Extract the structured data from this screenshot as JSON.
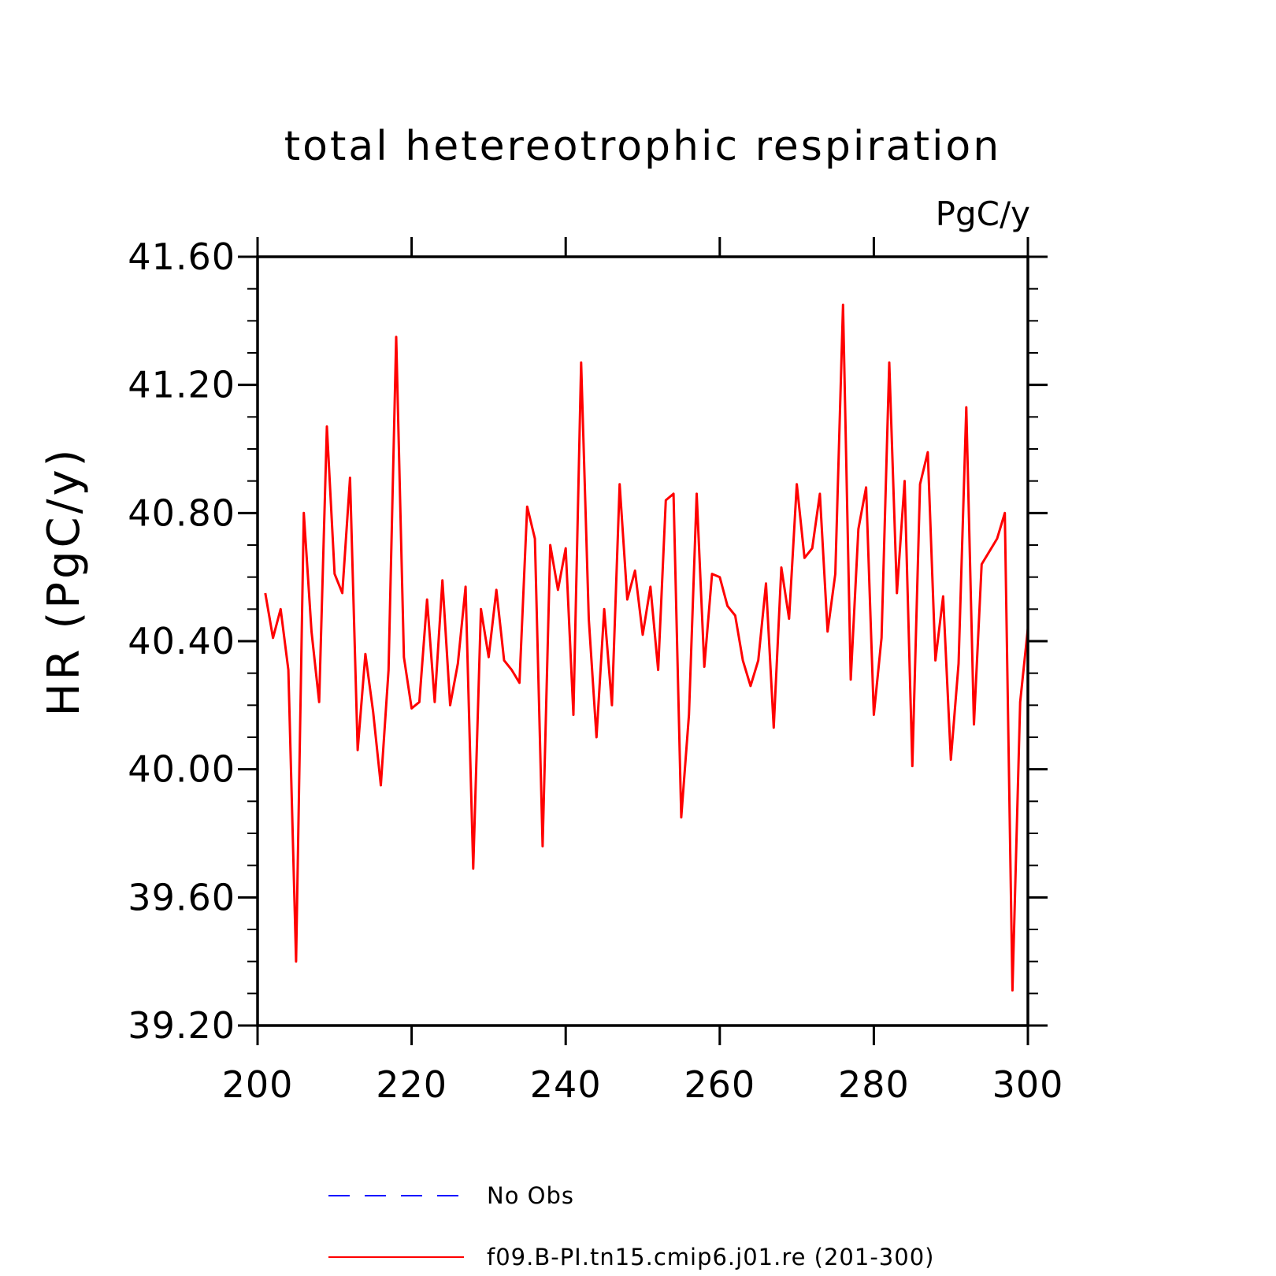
{
  "chart_data": {
    "type": "line",
    "title": "total hetereotrophic respiration",
    "units": "PgC/y",
    "ylabel": "HR  (PgC/y)",
    "xlabel": "",
    "xlim": [
      200,
      300
    ],
    "ylim": [
      39.2,
      41.6
    ],
    "xticks": [
      200,
      220,
      240,
      260,
      280,
      300
    ],
    "xtick_labels": [
      "200",
      "220",
      "240",
      "260",
      "280",
      "300"
    ],
    "yticks": [
      39.2,
      39.6,
      40.0,
      40.4,
      40.8,
      41.2,
      41.6
    ],
    "ytick_labels": [
      "39.20",
      "39.60",
      "40.00",
      "40.40",
      "40.80",
      "41.20",
      "41.60"
    ],
    "grid": false,
    "legend": {
      "placement": "bottom",
      "entries": [
        {
          "label": "No Obs",
          "color": "#0000ff",
          "style": "dashed"
        },
        {
          "label": "f09.B-PI.tn15.cmip6.j01.re (201-300)",
          "color": "#ff0000",
          "style": "solid"
        }
      ]
    },
    "x": [
      201,
      202,
      203,
      204,
      205,
      206,
      207,
      208,
      209,
      210,
      211,
      212,
      213,
      214,
      215,
      216,
      217,
      218,
      219,
      220,
      221,
      222,
      223,
      224,
      225,
      226,
      227,
      228,
      229,
      230,
      231,
      232,
      233,
      234,
      235,
      236,
      237,
      238,
      239,
      240,
      241,
      242,
      243,
      244,
      245,
      246,
      247,
      248,
      249,
      250,
      251,
      252,
      253,
      254,
      255,
      256,
      257,
      258,
      259,
      260,
      261,
      262,
      263,
      264,
      265,
      266,
      267,
      268,
      269,
      270,
      271,
      272,
      273,
      274,
      275,
      276,
      277,
      278,
      279,
      280,
      281,
      282,
      283,
      284,
      285,
      286,
      287,
      288,
      289,
      290,
      291,
      292,
      293,
      294,
      295,
      296,
      297,
      298,
      299,
      300
    ],
    "series": [
      {
        "name": "f09.B-PI.tn15.cmip6.j01.re (201-300)",
        "color": "#ff0000",
        "values": [
          40.55,
          40.41,
          40.5,
          40.31,
          39.4,
          40.8,
          40.43,
          40.21,
          41.07,
          40.61,
          40.55,
          40.91,
          40.06,
          40.36,
          40.18,
          39.95,
          40.31,
          41.35,
          40.35,
          40.19,
          40.21,
          40.53,
          40.21,
          40.59,
          40.2,
          40.33,
          40.57,
          39.69,
          40.5,
          40.35,
          40.56,
          40.34,
          40.31,
          40.27,
          40.82,
          40.72,
          39.76,
          40.7,
          40.56,
          40.69,
          40.17,
          41.27,
          40.47,
          40.1,
          40.5,
          40.2,
          40.89,
          40.53,
          40.62,
          40.42,
          40.57,
          40.31,
          40.84,
          40.86,
          39.85,
          40.17,
          40.86,
          40.32,
          40.61,
          40.6,
          40.51,
          40.48,
          40.34,
          40.26,
          40.34,
          40.58,
          40.13,
          40.63,
          40.47,
          40.89,
          40.66,
          40.69,
          40.86,
          40.43,
          40.61,
          41.45,
          40.28,
          40.75,
          40.88,
          40.17,
          40.41,
          41.27,
          40.55,
          40.9,
          40.01,
          40.89,
          40.99,
          40.34,
          40.54,
          40.03,
          40.33,
          41.13,
          40.14,
          40.64,
          40.68,
          40.72,
          40.8,
          39.31,
          40.21,
          40.44
        ]
      }
    ]
  }
}
